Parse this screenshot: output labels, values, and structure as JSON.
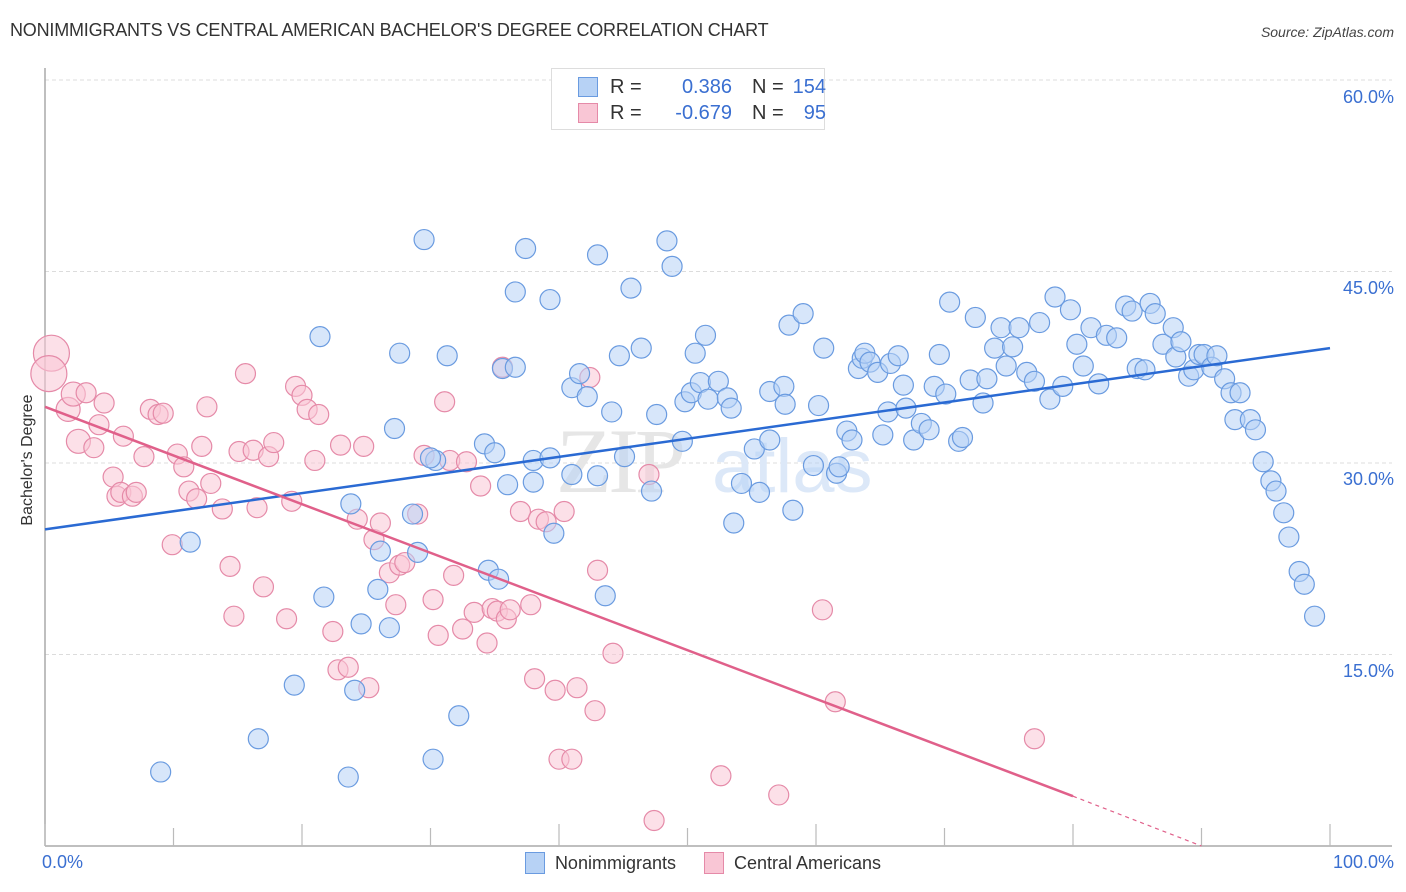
{
  "page": {
    "title": "NONIMMIGRANTS VS CENTRAL AMERICAN BACHELOR'S DEGREE CORRELATION CHART",
    "source": "Source: ZipAtlas.com",
    "watermark": "ZIPatlas"
  },
  "stats": {
    "rows": [
      {
        "label": "R =",
        "r": "0.386",
        "n_label": "N =",
        "n": "154",
        "color": "#b7d2f5",
        "border": "#6a9be0"
      },
      {
        "label": "R =",
        "r": "-0.679",
        "n_label": "N =",
        "n": "95",
        "color": "#f9c6d5",
        "border": "#e58aa8"
      }
    ]
  },
  "chart_data": {
    "type": "scatter",
    "title": "NONIMMIGRANTS VS CENTRAL AMERICAN BACHELOR'S DEGREE CORRELATION CHART",
    "xlabel": "",
    "ylabel": "Bachelor's Degree",
    "xlim": [
      0,
      100
    ],
    "ylim": [
      0,
      60
    ],
    "x_tick_labels": [
      "0.0%",
      "100.0%"
    ],
    "y_ticks": [
      15,
      30,
      45,
      60
    ],
    "y_tick_labels": [
      "15.0%",
      "30.0%",
      "45.0%",
      "60.0%"
    ],
    "grid": true,
    "legend_position": "bottom-center",
    "series": [
      {
        "name": "Nonimmigrants",
        "color": "#6a9be0",
        "fill": "#b7d2f5",
        "line_color": "#2a6ad3",
        "r": 0.386,
        "n": 154,
        "trend": {
          "x": [
            0,
            100
          ],
          "y": [
            24.8,
            39.0
          ]
        },
        "points": [
          [
            9.0,
            5.8
          ],
          [
            11.3,
            23.8
          ],
          [
            16.6,
            8.4
          ],
          [
            19.4,
            12.6
          ],
          [
            21.4,
            39.9
          ],
          [
            21.7,
            19.5
          ],
          [
            23.6,
            5.4
          ],
          [
            23.8,
            26.8
          ],
          [
            24.1,
            12.2
          ],
          [
            24.6,
            17.4
          ],
          [
            25.9,
            20.1
          ],
          [
            26.1,
            23.1
          ],
          [
            26.8,
            17.1
          ],
          [
            27.2,
            32.7
          ],
          [
            27.6,
            38.6
          ],
          [
            28.6,
            26.0
          ],
          [
            29.0,
            23.0
          ],
          [
            29.5,
            47.5
          ],
          [
            30.2,
            6.8
          ],
          [
            30.4,
            30.2
          ],
          [
            31.3,
            38.4
          ],
          [
            32.2,
            10.2
          ],
          [
            34.2,
            31.5
          ],
          [
            34.5,
            21.6
          ],
          [
            35.0,
            30.8
          ],
          [
            35.3,
            20.9
          ],
          [
            35.6,
            37.4
          ],
          [
            36.0,
            28.3
          ],
          [
            36.6,
            43.4
          ],
          [
            37.4,
            46.8
          ],
          [
            38.0,
            30.2
          ],
          [
            38.0,
            28.5
          ],
          [
            39.3,
            42.8
          ],
          [
            39.3,
            30.4
          ],
          [
            39.6,
            24.5
          ],
          [
            41.0,
            35.9
          ],
          [
            41.0,
            29.1
          ],
          [
            41.6,
            37.0
          ],
          [
            42.2,
            35.2
          ],
          [
            43.0,
            46.3
          ],
          [
            43.0,
            29.0
          ],
          [
            43.6,
            19.6
          ],
          [
            44.1,
            34.0
          ],
          [
            44.7,
            38.4
          ],
          [
            45.1,
            30.5
          ],
          [
            45.6,
            43.7
          ],
          [
            46.4,
            39.0
          ],
          [
            47.2,
            27.8
          ],
          [
            47.6,
            33.8
          ],
          [
            48.2,
            59.0
          ],
          [
            48.4,
            47.4
          ],
          [
            48.8,
            45.4
          ],
          [
            49.6,
            31.7
          ],
          [
            49.8,
            34.8
          ],
          [
            50.3,
            35.5
          ],
          [
            50.6,
            38.6
          ],
          [
            51.0,
            36.3
          ],
          [
            51.4,
            40.0
          ],
          [
            51.6,
            35.0
          ],
          [
            52.4,
            36.4
          ],
          [
            53.1,
            35.1
          ],
          [
            53.4,
            34.3
          ],
          [
            53.6,
            25.3
          ],
          [
            54.2,
            28.4
          ],
          [
            55.2,
            31.1
          ],
          [
            55.6,
            27.7
          ],
          [
            56.4,
            31.8
          ],
          [
            56.4,
            35.6
          ],
          [
            57.5,
            36.0
          ],
          [
            57.6,
            34.6
          ],
          [
            57.9,
            40.8
          ],
          [
            58.2,
            26.3
          ],
          [
            59.0,
            41.7
          ],
          [
            59.8,
            29.8
          ],
          [
            60.2,
            34.5
          ],
          [
            60.6,
            39.0
          ],
          [
            61.6,
            29.2
          ],
          [
            61.8,
            29.7
          ],
          [
            62.4,
            32.5
          ],
          [
            62.8,
            31.8
          ],
          [
            63.3,
            37.4
          ],
          [
            63.6,
            38.2
          ],
          [
            63.8,
            38.6
          ],
          [
            64.2,
            37.9
          ],
          [
            64.8,
            37.1
          ],
          [
            65.2,
            32.2
          ],
          [
            65.6,
            34.0
          ],
          [
            65.8,
            37.8
          ],
          [
            66.4,
            38.4
          ],
          [
            66.8,
            36.1
          ],
          [
            67.0,
            34.3
          ],
          [
            67.6,
            31.8
          ],
          [
            68.2,
            33.1
          ],
          [
            68.8,
            32.6
          ],
          [
            69.2,
            36.0
          ],
          [
            69.6,
            38.5
          ],
          [
            70.1,
            35.4
          ],
          [
            70.4,
            42.6
          ],
          [
            71.1,
            31.7
          ],
          [
            71.4,
            32.0
          ],
          [
            72.0,
            36.5
          ],
          [
            72.4,
            41.4
          ],
          [
            73.0,
            34.7
          ],
          [
            73.3,
            36.6
          ],
          [
            73.9,
            39.0
          ],
          [
            74.4,
            40.6
          ],
          [
            74.8,
            37.6
          ],
          [
            75.3,
            39.1
          ],
          [
            75.8,
            40.6
          ],
          [
            76.4,
            37.1
          ],
          [
            77.0,
            36.4
          ],
          [
            77.4,
            41.0
          ],
          [
            78.2,
            35.0
          ],
          [
            78.6,
            43.0
          ],
          [
            79.2,
            36.0
          ],
          [
            79.8,
            42.0
          ],
          [
            80.3,
            39.3
          ],
          [
            80.8,
            37.6
          ],
          [
            81.4,
            40.6
          ],
          [
            82.0,
            36.2
          ],
          [
            82.6,
            40.0
          ],
          [
            83.4,
            39.8
          ],
          [
            84.1,
            42.3
          ],
          [
            84.6,
            41.9
          ],
          [
            85.0,
            37.4
          ],
          [
            85.6,
            37.3
          ],
          [
            86.0,
            42.5
          ],
          [
            86.4,
            41.7
          ],
          [
            87.0,
            39.3
          ],
          [
            87.8,
            40.6
          ],
          [
            88.0,
            38.3
          ],
          [
            88.4,
            39.5
          ],
          [
            89.0,
            36.8
          ],
          [
            89.4,
            37.3
          ],
          [
            89.8,
            38.5
          ],
          [
            90.2,
            38.5
          ],
          [
            90.8,
            37.5
          ],
          [
            91.2,
            38.4
          ],
          [
            91.8,
            36.6
          ],
          [
            92.3,
            35.5
          ],
          [
            92.6,
            33.4
          ],
          [
            93.0,
            35.5
          ],
          [
            93.8,
            33.4
          ],
          [
            94.2,
            32.6
          ],
          [
            94.8,
            30.1
          ],
          [
            95.4,
            28.6
          ],
          [
            95.8,
            27.8
          ],
          [
            96.4,
            26.1
          ],
          [
            96.8,
            24.2
          ],
          [
            97.6,
            21.5
          ],
          [
            98.0,
            20.5
          ],
          [
            98.8,
            18.0
          ],
          [
            36.6,
            37.5
          ],
          [
            30.0,
            30.4
          ]
        ]
      },
      {
        "name": "Central Americans",
        "color": "#e58aa8",
        "fill": "#f9c6d5",
        "line_color": "#e0608a",
        "r": -0.679,
        "n": 95,
        "trend": {
          "x": [
            0,
            80
          ],
          "y": [
            34.4,
            3.9
          ]
        },
        "trend_dashed": {
          "x": [
            80,
            90
          ],
          "y": [
            3.9,
            0.0
          ]
        },
        "points": [
          [
            0.5,
            38.6
          ],
          [
            0.3,
            37.0
          ],
          [
            1.8,
            34.2
          ],
          [
            2.2,
            35.4
          ],
          [
            2.6,
            31.7
          ],
          [
            3.2,
            35.5
          ],
          [
            3.8,
            31.2
          ],
          [
            4.2,
            33.0
          ],
          [
            4.6,
            34.7
          ],
          [
            5.3,
            28.9
          ],
          [
            5.6,
            27.4
          ],
          [
            5.9,
            27.7
          ],
          [
            6.1,
            32.1
          ],
          [
            6.8,
            27.4
          ],
          [
            7.1,
            27.7
          ],
          [
            7.7,
            30.5
          ],
          [
            8.2,
            34.2
          ],
          [
            8.8,
            33.8
          ],
          [
            9.2,
            33.9
          ],
          [
            9.9,
            23.6
          ],
          [
            10.3,
            30.7
          ],
          [
            10.8,
            29.7
          ],
          [
            11.2,
            27.8
          ],
          [
            11.8,
            27.2
          ],
          [
            12.2,
            31.3
          ],
          [
            12.6,
            34.4
          ],
          [
            12.9,
            28.4
          ],
          [
            13.8,
            26.4
          ],
          [
            14.4,
            21.9
          ],
          [
            14.7,
            18.0
          ],
          [
            15.1,
            30.9
          ],
          [
            15.6,
            37.0
          ],
          [
            16.2,
            31.0
          ],
          [
            16.5,
            26.5
          ],
          [
            17.0,
            20.3
          ],
          [
            17.4,
            30.5
          ],
          [
            17.8,
            31.6
          ],
          [
            18.8,
            17.8
          ],
          [
            19.2,
            27.0
          ],
          [
            19.5,
            36.0
          ],
          [
            20.0,
            35.3
          ],
          [
            20.4,
            34.2
          ],
          [
            21.0,
            30.2
          ],
          [
            21.3,
            33.8
          ],
          [
            22.4,
            16.8
          ],
          [
            22.8,
            13.8
          ],
          [
            23.0,
            31.4
          ],
          [
            23.6,
            14.0
          ],
          [
            24.3,
            25.6
          ],
          [
            24.8,
            31.3
          ],
          [
            25.2,
            12.4
          ],
          [
            25.6,
            24.0
          ],
          [
            26.1,
            25.3
          ],
          [
            26.8,
            21.4
          ],
          [
            27.3,
            18.9
          ],
          [
            27.6,
            22.0
          ],
          [
            28.0,
            22.2
          ],
          [
            29.0,
            26.0
          ],
          [
            29.5,
            30.6
          ],
          [
            30.2,
            19.3
          ],
          [
            30.6,
            16.5
          ],
          [
            31.1,
            34.8
          ],
          [
            31.5,
            30.2
          ],
          [
            31.8,
            21.2
          ],
          [
            32.5,
            17.0
          ],
          [
            32.8,
            30.1
          ],
          [
            33.4,
            18.3
          ],
          [
            33.9,
            28.2
          ],
          [
            34.4,
            15.9
          ],
          [
            34.8,
            18.6
          ],
          [
            35.2,
            18.4
          ],
          [
            35.6,
            37.5
          ],
          [
            35.9,
            17.8
          ],
          [
            36.2,
            18.5
          ],
          [
            37.0,
            26.2
          ],
          [
            37.8,
            18.9
          ],
          [
            38.1,
            13.1
          ],
          [
            38.4,
            25.6
          ],
          [
            39.0,
            25.4
          ],
          [
            39.7,
            12.2
          ],
          [
            40.0,
            6.8
          ],
          [
            40.4,
            26.2
          ],
          [
            41.0,
            6.8
          ],
          [
            41.4,
            12.4
          ],
          [
            42.4,
            36.7
          ],
          [
            42.8,
            10.6
          ],
          [
            43.0,
            21.6
          ],
          [
            44.2,
            15.1
          ],
          [
            47.0,
            29.1
          ],
          [
            47.4,
            2.0
          ],
          [
            52.6,
            5.5
          ],
          [
            57.1,
            4.0
          ],
          [
            60.5,
            18.5
          ],
          [
            61.5,
            11.3
          ],
          [
            77.0,
            8.4
          ]
        ]
      }
    ]
  }
}
